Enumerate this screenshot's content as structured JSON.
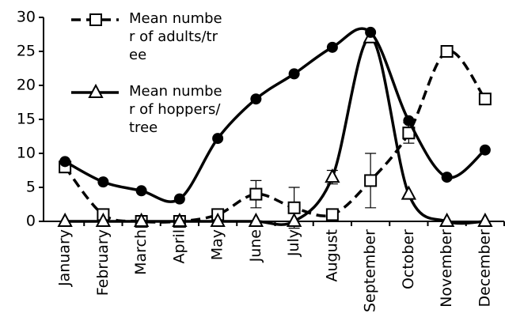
{
  "chart_data": {
    "type": "line",
    "categories": [
      "January",
      "February",
      "March",
      "April",
      "May",
      "June",
      "July",
      "August",
      "September",
      "October",
      "November",
      "December"
    ],
    "series": [
      {
        "name": "Mean number of adults/tree",
        "color": "#000000",
        "marker": "square",
        "dashed": true,
        "values": [
          8,
          1,
          0,
          0,
          1,
          4,
          2,
          1,
          6,
          13,
          25,
          18
        ],
        "errors": [
          null,
          null,
          null,
          null,
          null,
          2,
          3,
          null,
          4,
          1.5,
          null,
          null
        ]
      },
      {
        "name": "Mean number of hoppers/tree",
        "color": "#000000",
        "marker": "triangle",
        "dashed": false,
        "values": [
          0,
          0,
          0,
          0,
          0,
          0,
          0,
          6.5,
          27,
          4,
          0,
          0
        ],
        "errors": [
          null,
          null,
          null,
          null,
          null,
          null,
          null,
          1,
          null,
          null,
          null,
          null
        ]
      },
      {
        "color": "#000000",
        "marker": "circle",
        "dashed": false,
        "values": [
          8.8,
          5.8,
          4.5,
          3.3,
          12.2,
          18,
          21.7,
          25.6,
          27.8,
          14.8,
          6.5,
          10.5
        ]
      }
    ],
    "ylim": [
      0,
      30
    ],
    "yticks": [
      0,
      5,
      10,
      15,
      20,
      25,
      30
    ],
    "grid": false
  }
}
